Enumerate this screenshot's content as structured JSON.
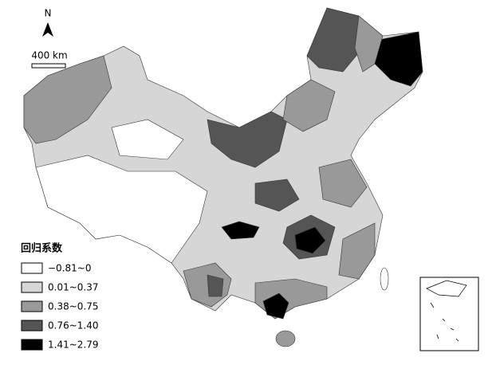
{
  "north_arrow": {
    "label": "N"
  },
  "scale_bar": {
    "label": "400 km"
  },
  "legend": {
    "title": "回归系数",
    "items": [
      {
        "label": "−0.81~0",
        "color": "#ffffff"
      },
      {
        "label": "0.01~0.37",
        "color": "#d6d6d6"
      },
      {
        "label": "0.38~0.75",
        "color": "#999999"
      },
      {
        "label": "0.76~1.40",
        "color": "#555555"
      },
      {
        "label": "1.41~2.79",
        "color": "#000000"
      }
    ]
  }
}
